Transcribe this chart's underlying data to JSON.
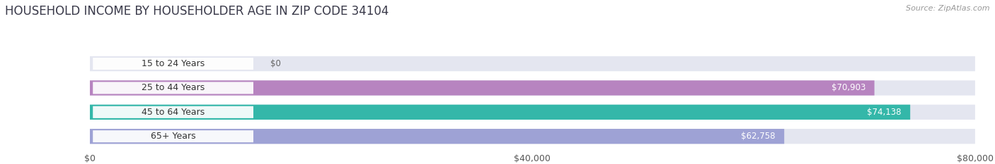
{
  "title": "HOUSEHOLD INCOME BY HOUSEHOLDER AGE IN ZIP CODE 34104",
  "source": "Source: ZipAtlas.com",
  "categories": [
    "15 to 24 Years",
    "25 to 44 Years",
    "45 to 64 Years",
    "65+ Years"
  ],
  "values": [
    0,
    70903,
    74138,
    62758
  ],
  "bar_colors": [
    "#a8b8d8",
    "#b57fbe",
    "#2ab5a5",
    "#9b9fd4"
  ],
  "bar_bg_color": "#e4e6f0",
  "value_labels": [
    "$0",
    "$70,903",
    "$74,138",
    "$62,758"
  ],
  "xlim": [
    0,
    80000
  ],
  "xticks": [
    0,
    40000,
    80000
  ],
  "xtick_labels": [
    "$0",
    "$40,000",
    "$80,000"
  ],
  "figsize": [
    14.06,
    2.33
  ],
  "dpi": 100,
  "bg_color": "#ffffff",
  "title_fontsize": 12,
  "source_fontsize": 8,
  "label_fontsize": 9,
  "value_fontsize": 8.5
}
